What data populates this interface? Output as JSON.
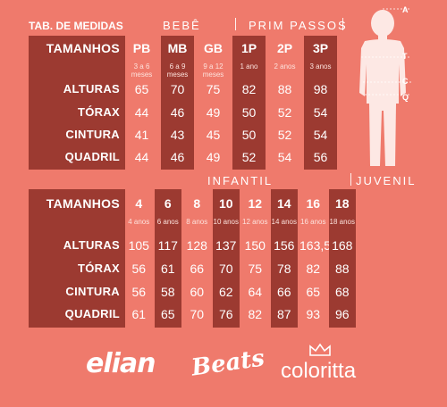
{
  "title": "TAB. DE MEDIDAS",
  "groups_top": {
    "bebe": "BEBÊ",
    "prim": "PRIM PASSOS"
  },
  "groups_bottom": {
    "infantil": "INFANTIL",
    "juvenil": "JUVENIL"
  },
  "row_labels": {
    "tamanhos": "TAMANHOS",
    "alturas": "ALTURAS",
    "torax": "TÓRAX",
    "cintura": "CINTURA",
    "quadril": "QUADRIL"
  },
  "table1": {
    "cols": [
      {
        "size": "PB",
        "age": "3 a 6\nmeses",
        "alturas": "65",
        "torax": "44",
        "cintura": "41",
        "quadril": "44"
      },
      {
        "size": "MB",
        "age": "6 a 9\nmeses",
        "alturas": "70",
        "torax": "46",
        "cintura": "43",
        "quadril": "46"
      },
      {
        "size": "GB",
        "age": "9 a 12\nmeses",
        "alturas": "75",
        "torax": "49",
        "cintura": "45",
        "quadril": "49"
      },
      {
        "size": "1P",
        "age": "1 ano",
        "alturas": "82",
        "torax": "50",
        "cintura": "50",
        "quadril": "52"
      },
      {
        "size": "2P",
        "age": "2 anos",
        "alturas": "88",
        "torax": "52",
        "cintura": "52",
        "quadril": "54"
      },
      {
        "size": "3P",
        "age": "3 anos",
        "alturas": "98",
        "torax": "54",
        "cintura": "54",
        "quadril": "56"
      }
    ]
  },
  "table2": {
    "cols": [
      {
        "size": "4",
        "age": "4 anos",
        "alturas": "105",
        "torax": "56",
        "cintura": "56",
        "quadril": "61"
      },
      {
        "size": "6",
        "age": "6 anos",
        "alturas": "117",
        "torax": "61",
        "cintura": "58",
        "quadril": "65"
      },
      {
        "size": "8",
        "age": "8 anos",
        "alturas": "128",
        "torax": "66",
        "cintura": "60",
        "quadril": "70"
      },
      {
        "size": "10",
        "age": "10 anos",
        "alturas": "137",
        "torax": "70",
        "cintura": "62",
        "quadril": "76"
      },
      {
        "size": "12",
        "age": "12 anos",
        "alturas": "150",
        "torax": "75",
        "cintura": "64",
        "quadril": "82"
      },
      {
        "size": "14",
        "age": "14 anos",
        "alturas": "156",
        "torax": "78",
        "cintura": "66",
        "quadril": "87"
      },
      {
        "size": "16",
        "age": "16 anos",
        "alturas": "163,5",
        "torax": "82",
        "cintura": "65",
        "quadril": "93"
      },
      {
        "size": "18",
        "age": "18 anos",
        "alturas": "168",
        "torax": "88",
        "cintura": "68",
        "quadril": "96"
      }
    ]
  },
  "figure_letters": {
    "a": "A",
    "t": "T",
    "c": "C",
    "q": "Q"
  },
  "logos": {
    "elian": "elian",
    "beats": "Beats",
    "coloritta": "coloritta"
  },
  "colors": {
    "background": "#ef7a6c",
    "dark": "#9c3a31"
  }
}
